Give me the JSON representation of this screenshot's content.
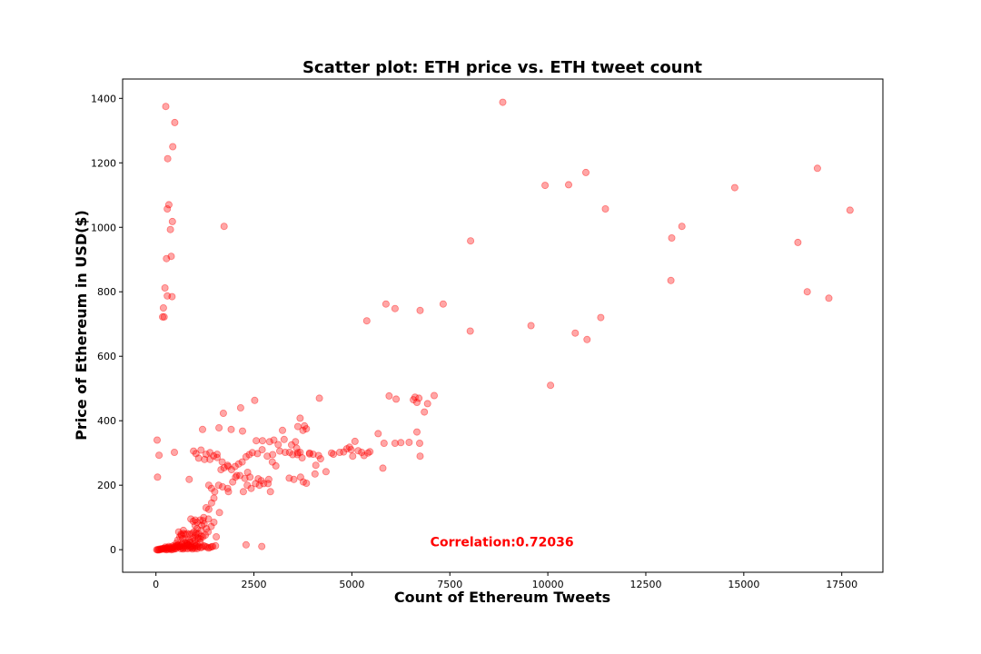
{
  "chart_data": {
    "type": "scatter",
    "title": "Scatter plot: ETH price vs. ETH tweet count",
    "xlabel": "Count of Ethereum Tweets",
    "ylabel": "Price of Ethereum in USD($)",
    "xlim": [
      -850,
      18550
    ],
    "ylim": [
      -70,
      1460
    ],
    "xticks": [
      0,
      2500,
      5000,
      7500,
      10000,
      12500,
      15000,
      17500
    ],
    "yticks": [
      0,
      200,
      400,
      600,
      800,
      1000,
      1200,
      1400
    ],
    "grid": false,
    "marker_color": "#ff0000",
    "marker_alpha": 0.35,
    "annotation": {
      "text": "Correlation:0.72036",
      "x": 7000,
      "y": 10,
      "color": "#ff0000"
    },
    "series": [
      {
        "points": [
          [
            250,
            1375
          ],
          [
            480,
            1325
          ],
          [
            430,
            1250
          ],
          [
            300,
            1213
          ],
          [
            330,
            1070
          ],
          [
            290,
            1057
          ],
          [
            420,
            1018
          ],
          [
            370,
            993
          ],
          [
            390,
            910
          ],
          [
            270,
            903
          ],
          [
            230,
            812
          ],
          [
            290,
            787
          ],
          [
            410,
            785
          ],
          [
            190,
            750
          ],
          [
            170,
            722
          ],
          [
            210,
            722
          ],
          [
            1740,
            1003
          ],
          [
            8850,
            1388
          ],
          [
            9930,
            1130
          ],
          [
            10530,
            1132
          ],
          [
            10970,
            1170
          ],
          [
            11470,
            1057
          ],
          [
            13160,
            967
          ],
          [
            13420,
            1003
          ],
          [
            14770,
            1123
          ],
          [
            16380,
            953
          ],
          [
            16880,
            1183
          ],
          [
            17710,
            1053
          ],
          [
            8030,
            958
          ],
          [
            13140,
            835
          ],
          [
            16620,
            800
          ],
          [
            17170,
            780
          ],
          [
            5380,
            710
          ],
          [
            5870,
            762
          ],
          [
            6100,
            748
          ],
          [
            6740,
            742
          ],
          [
            7330,
            762
          ],
          [
            8020,
            678
          ],
          [
            9570,
            695
          ],
          [
            10700,
            672
          ],
          [
            11000,
            652
          ],
          [
            11350,
            720
          ],
          [
            10070,
            510
          ],
          [
            2520,
            463
          ],
          [
            2160,
            440
          ],
          [
            1720,
            423
          ],
          [
            4170,
            470
          ],
          [
            5950,
            477
          ],
          [
            6130,
            467
          ],
          [
            6610,
            473
          ],
          [
            6710,
            470
          ],
          [
            7100,
            478
          ],
          [
            6660,
            457
          ],
          [
            6850,
            427
          ],
          [
            6930,
            453
          ],
          [
            6570,
            465
          ],
          [
            5670,
            360
          ],
          [
            6660,
            365
          ],
          [
            6460,
            333
          ],
          [
            6250,
            332
          ],
          [
            6100,
            330
          ],
          [
            5820,
            330
          ],
          [
            6730,
            330
          ],
          [
            6740,
            290
          ],
          [
            5790,
            253
          ],
          [
            30,
            340
          ],
          [
            80,
            293
          ],
          [
            40,
            225
          ],
          [
            470,
            302
          ],
          [
            850,
            218
          ],
          [
            1190,
            373
          ],
          [
            1610,
            378
          ],
          [
            1920,
            373
          ],
          [
            2210,
            368
          ],
          [
            2560,
            338
          ],
          [
            2720,
            338
          ],
          [
            2900,
            335
          ],
          [
            3010,
            340
          ],
          [
            3230,
            370
          ],
          [
            3560,
            335
          ],
          [
            3620,
            382
          ],
          [
            3680,
            408
          ],
          [
            3750,
            370
          ],
          [
            3790,
            384
          ],
          [
            3840,
            375
          ],
          [
            3920,
            297
          ],
          [
            4010,
            296
          ],
          [
            4080,
            262
          ],
          [
            4150,
            292
          ],
          [
            4200,
            282
          ],
          [
            4340,
            242
          ],
          [
            4480,
            300
          ],
          [
            4530,
            296
          ],
          [
            4690,
            302
          ],
          [
            4790,
            303
          ],
          [
            4870,
            313
          ],
          [
            4940,
            318
          ],
          [
            5080,
            336
          ],
          [
            5160,
            307
          ],
          [
            5250,
            302
          ],
          [
            5310,
            292
          ],
          [
            5410,
            300
          ],
          [
            5460,
            304
          ],
          [
            5020,
            290
          ],
          [
            4980,
            310
          ],
          [
            3300,
            302
          ],
          [
            3410,
            302
          ],
          [
            3490,
            295
          ],
          [
            3610,
            295
          ],
          [
            3680,
            302
          ],
          [
            3730,
            285
          ],
          [
            3590,
            315
          ],
          [
            3460,
            325
          ],
          [
            3270,
            342
          ],
          [
            3120,
            326
          ],
          [
            2980,
            295
          ],
          [
            2840,
            290
          ],
          [
            2710,
            310
          ],
          [
            2590,
            298
          ],
          [
            2460,
            301
          ],
          [
            2380,
            295
          ],
          [
            2300,
            288
          ],
          [
            2200,
            272
          ],
          [
            2110,
            266
          ],
          [
            2020,
            258
          ],
          [
            1930,
            248
          ],
          [
            1830,
            262
          ],
          [
            1740,
            254
          ],
          [
            1660,
            248
          ],
          [
            1560,
            286
          ],
          [
            1470,
            291
          ],
          [
            1380,
            280
          ],
          [
            1280,
            296
          ],
          [
            1150,
            309
          ],
          [
            1020,
            298
          ],
          [
            960,
            306
          ],
          [
            1090,
            284
          ],
          [
            1240,
            280
          ],
          [
            1380,
            301
          ],
          [
            1560,
            296
          ],
          [
            1690,
            272
          ],
          [
            1840,
            258
          ],
          [
            2060,
            230
          ],
          [
            2270,
            221
          ],
          [
            2340,
            240
          ],
          [
            2400,
            225
          ],
          [
            2610,
            220
          ],
          [
            2690,
            214
          ],
          [
            2880,
            218
          ],
          [
            2970,
            272
          ],
          [
            3060,
            260
          ],
          [
            3160,
            306
          ],
          [
            3400,
            222
          ],
          [
            3520,
            218
          ],
          [
            3620,
            301
          ],
          [
            3690,
            225
          ],
          [
            3760,
            210
          ],
          [
            3840,
            206
          ],
          [
            3920,
            300
          ],
          [
            4060,
            235
          ],
          [
            1350,
            200
          ],
          [
            1420,
            190
          ],
          [
            1500,
            180
          ],
          [
            1600,
            200
          ],
          [
            1700,
            195
          ],
          [
            1830,
            190
          ],
          [
            1960,
            210
          ],
          [
            2030,
            225
          ],
          [
            2140,
            230
          ],
          [
            2230,
            180
          ],
          [
            2330,
            200
          ],
          [
            2430,
            190
          ],
          [
            2540,
            205
          ],
          [
            2640,
            200
          ],
          [
            2750,
            205
          ],
          [
            2860,
            205
          ],
          [
            2920,
            180
          ],
          [
            1850,
            180
          ],
          [
            1620,
            115
          ],
          [
            1480,
            160
          ],
          [
            1420,
            145
          ],
          [
            1350,
            125
          ],
          [
            1280,
            130
          ],
          [
            1220,
            100
          ],
          [
            1340,
            95
          ],
          [
            1480,
            85
          ],
          [
            1410,
            72
          ],
          [
            1330,
            55
          ],
          [
            1260,
            45
          ],
          [
            1200,
            40
          ],
          [
            1130,
            33
          ],
          [
            1540,
            40
          ],
          [
            1520,
            12
          ],
          [
            1450,
            10
          ],
          [
            2300,
            15
          ],
          [
            2700,
            10
          ],
          [
            1000,
            92
          ],
          [
            1050,
            85
          ],
          [
            1130,
            92
          ],
          [
            1200,
            90
          ],
          [
            1050,
            65
          ],
          [
            1000,
            75
          ],
          [
            970,
            55
          ],
          [
            920,
            50
          ],
          [
            860,
            48
          ],
          [
            800,
            50
          ],
          [
            750,
            48
          ],
          [
            700,
            50
          ],
          [
            650,
            45
          ],
          [
            610,
            40
          ],
          [
            680,
            35
          ],
          [
            760,
            30
          ],
          [
            850,
            30
          ],
          [
            930,
            25
          ],
          [
            1000,
            30
          ],
          [
            1090,
            35
          ],
          [
            1160,
            42
          ],
          [
            1130,
            22
          ],
          [
            1050,
            15
          ],
          [
            980,
            18
          ],
          [
            900,
            12
          ],
          [
            830,
            15
          ],
          [
            780,
            12
          ],
          [
            720,
            10
          ],
          [
            660,
            15
          ],
          [
            600,
            12
          ],
          [
            540,
            8
          ],
          [
            490,
            10
          ],
          [
            440,
            12
          ],
          [
            380,
            8
          ],
          [
            330,
            10
          ],
          [
            280,
            6
          ],
          [
            240,
            8
          ],
          [
            190,
            4
          ],
          [
            150,
            3
          ],
          [
            110,
            2
          ],
          [
            70,
            1
          ],
          [
            40,
            0
          ],
          [
            20,
            0
          ],
          [
            60,
            -1
          ],
          [
            100,
            0
          ],
          [
            140,
            1
          ],
          [
            180,
            2
          ],
          [
            220,
            4
          ],
          [
            260,
            3
          ],
          [
            300,
            5
          ],
          [
            340,
            6
          ],
          [
            380,
            3
          ],
          [
            420,
            5
          ],
          [
            460,
            8
          ],
          [
            500,
            6
          ],
          [
            540,
            14
          ],
          [
            580,
            16
          ],
          [
            620,
            10
          ],
          [
            660,
            7
          ],
          [
            700,
            5
          ],
          [
            740,
            12
          ],
          [
            780,
            18
          ],
          [
            820,
            14
          ],
          [
            860,
            10
          ],
          [
            900,
            8
          ],
          [
            940,
            6
          ],
          [
            980,
            10
          ],
          [
            1020,
            12
          ],
          [
            1060,
            8
          ],
          [
            1100,
            10
          ],
          [
            1140,
            6
          ],
          [
            1180,
            8
          ],
          [
            1220,
            12
          ],
          [
            1260,
            10
          ],
          [
            1300,
            8
          ],
          [
            1340,
            5
          ],
          [
            1380,
            7
          ],
          [
            1420,
            9
          ],
          [
            510,
            3
          ],
          [
            470,
            2
          ],
          [
            430,
            1
          ],
          [
            390,
            0
          ],
          [
            350,
            2
          ],
          [
            310,
            1
          ],
          [
            270,
            0
          ],
          [
            230,
            1
          ],
          [
            630,
            3
          ],
          [
            690,
            2
          ],
          [
            750,
            4
          ],
          [
            810,
            3
          ],
          [
            870,
            5
          ],
          [
            930,
            2
          ],
          [
            990,
            4
          ],
          [
            1050,
            3
          ],
          [
            590,
            8
          ],
          [
            530,
            12
          ],
          [
            680,
            20
          ],
          [
            740,
            22
          ],
          [
            800,
            20
          ],
          [
            870,
            24
          ],
          [
            940,
            36
          ],
          [
            1010,
            44
          ],
          [
            1080,
            50
          ],
          [
            700,
            60
          ],
          [
            640,
            48
          ],
          [
            580,
            55
          ],
          [
            560,
            30
          ],
          [
            520,
            20
          ],
          [
            890,
            95
          ],
          [
            950,
            88
          ],
          [
            1020,
            52
          ],
          [
            1070,
            38
          ],
          [
            1150,
            60
          ],
          [
            1170,
            75
          ],
          [
            1230,
            80
          ],
          [
            1290,
            65
          ]
        ]
      }
    ]
  }
}
